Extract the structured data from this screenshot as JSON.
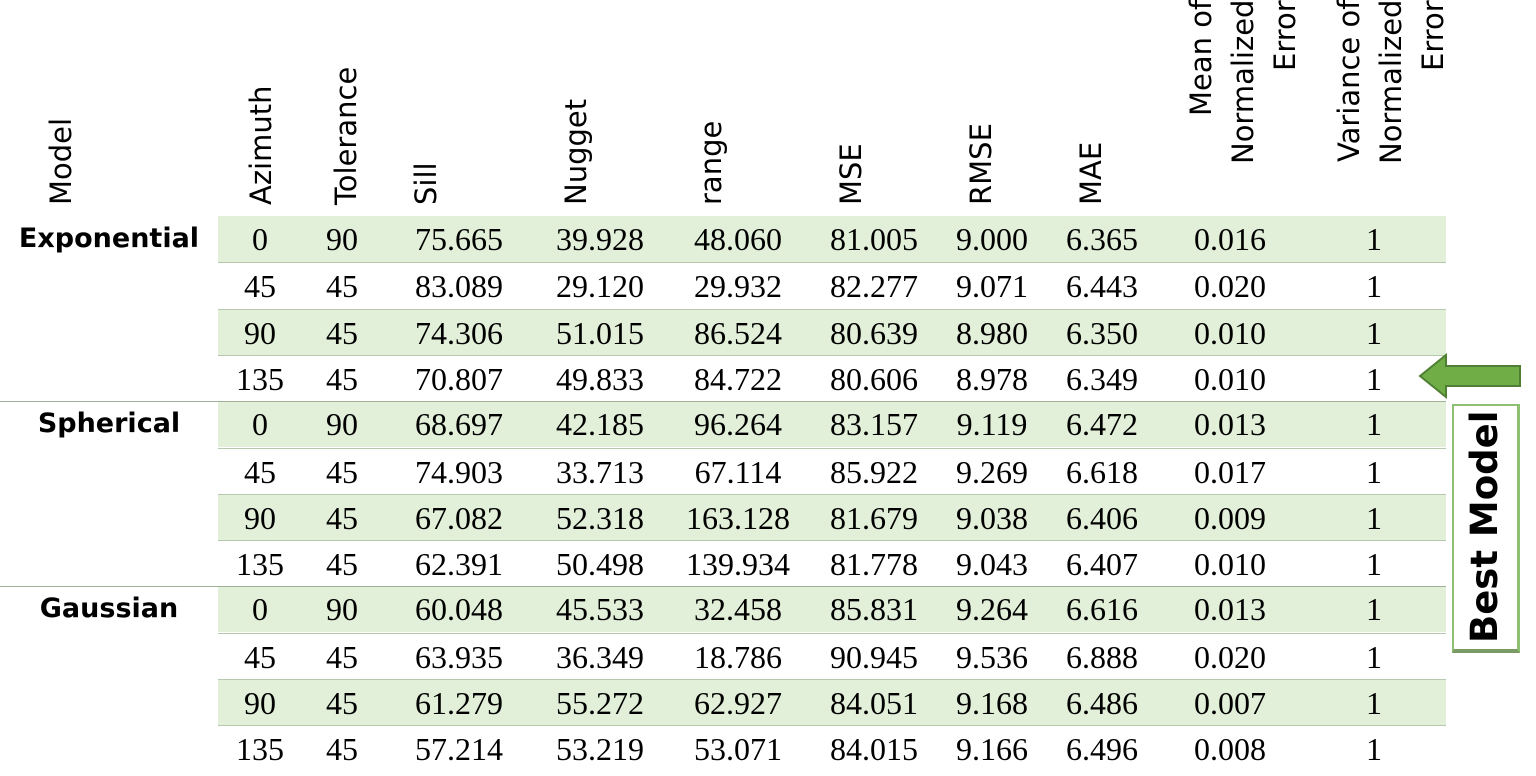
{
  "table": {
    "headers": [
      "Model",
      "Azimuth",
      "Tolerance",
      "Sill",
      "Nugget",
      "range",
      "MSE",
      "RMSE",
      "MAE",
      "Mean of Normalized Error",
      "Variance of Normalized Error"
    ],
    "rows": [
      [
        "0",
        "90",
        "75.665",
        "39.928",
        "48.060",
        "81.005",
        "9.000",
        "6.365",
        "0.016",
        "1"
      ],
      [
        "45",
        "45",
        "83.089",
        "29.120",
        "29.932",
        "82.277",
        "9.071",
        "6.443",
        "0.020",
        "1"
      ],
      [
        "90",
        "45",
        "74.306",
        "51.015",
        "86.524",
        "80.639",
        "8.980",
        "6.350",
        "0.010",
        "1"
      ],
      [
        "135",
        "45",
        "70.807",
        "49.833",
        "84.722",
        "80.606",
        "8.978",
        "6.349",
        "0.010",
        "1"
      ],
      [
        "0",
        "90",
        "68.697",
        "42.185",
        "96.264",
        "83.157",
        "9.119",
        "6.472",
        "0.013",
        "1"
      ],
      [
        "45",
        "45",
        "74.903",
        "33.713",
        "67.114",
        "85.922",
        "9.269",
        "6.618",
        "0.017",
        "1"
      ],
      [
        "90",
        "45",
        "67.082",
        "52.318",
        "163.128",
        "81.679",
        "9.038",
        "6.406",
        "0.009",
        "1"
      ],
      [
        "135",
        "45",
        "62.391",
        "50.498",
        "139.934",
        "81.778",
        "9.043",
        "6.407",
        "0.010",
        "1"
      ],
      [
        "0",
        "90",
        "60.048",
        "45.533",
        "32.458",
        "85.831",
        "9.264",
        "6.616",
        "0.013",
        "1"
      ],
      [
        "45",
        "45",
        "63.935",
        "36.349",
        "18.786",
        "90.945",
        "9.536",
        "6.888",
        "0.020",
        "1"
      ],
      [
        "90",
        "45",
        "61.279",
        "55.272",
        "62.927",
        "84.051",
        "9.168",
        "6.486",
        "0.007",
        "1"
      ],
      [
        "135",
        "45",
        "57.214",
        "53.219",
        "53.071",
        "84.015",
        "9.166",
        "6.496",
        "0.008",
        "1"
      ]
    ],
    "groups": [
      "Exponential",
      "Spherical",
      "Gaussian"
    ]
  },
  "annotation": {
    "label": "Best Model",
    "color": "#70ad47"
  }
}
